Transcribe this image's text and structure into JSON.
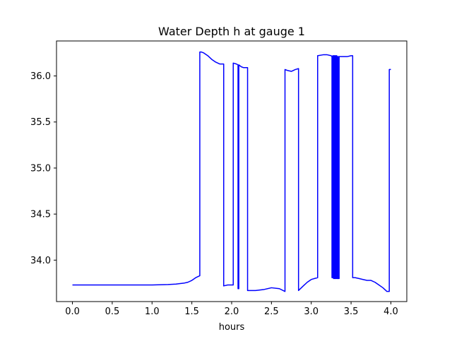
{
  "chart_data": {
    "type": "line",
    "title": "Water Depth h at gauge 1",
    "xlabel": "hours",
    "ylabel": "",
    "xlim": [
      -0.2,
      4.2
    ],
    "ylim": [
      33.55,
      36.38
    ],
    "xticks": [
      0.0,
      0.5,
      1.0,
      1.5,
      2.0,
      2.5,
      3.0,
      3.5,
      4.0
    ],
    "xtick_labels": [
      "0.0",
      "0.5",
      "1.0",
      "1.5",
      "2.0",
      "2.5",
      "3.0",
      "3.5",
      "4.0"
    ],
    "yticks": [
      34.0,
      34.5,
      35.0,
      35.5,
      36.0
    ],
    "ytick_labels": [
      "34.0",
      "34.5",
      "35.0",
      "35.5",
      "36.0"
    ],
    "grid": false,
    "legend": "none",
    "series": [
      {
        "color": "#0000ff",
        "x": [
          0.0,
          0.5,
          1.0,
          1.2,
          1.3,
          1.4,
          1.45,
          1.5,
          1.55,
          1.6,
          1.6,
          1.62,
          1.65,
          1.7,
          1.75,
          1.8,
          1.85,
          1.9,
          1.9,
          1.95,
          2.0,
          2.02,
          2.02,
          2.06,
          2.08,
          2.08,
          2.09,
          2.09,
          2.12,
          2.15,
          2.2,
          2.2,
          2.3,
          2.4,
          2.5,
          2.6,
          2.67,
          2.67,
          2.7,
          2.75,
          2.8,
          2.84,
          2.84,
          2.9,
          2.95,
          3.0,
          3.08,
          3.08,
          3.15,
          3.2,
          3.25,
          3.26,
          3.26,
          3.27,
          3.27,
          3.28,
          3.28,
          3.29,
          3.29,
          3.3,
          3.3,
          3.31,
          3.31,
          3.32,
          3.32,
          3.33,
          3.33,
          3.34,
          3.34,
          3.35,
          3.35,
          3.4,
          3.45,
          3.5,
          3.52,
          3.52,
          3.55,
          3.6,
          3.65,
          3.7,
          3.75,
          3.8,
          3.85,
          3.9,
          3.95,
          3.98,
          3.98,
          4.0
        ],
        "y": [
          33.73,
          33.73,
          33.73,
          33.735,
          33.74,
          33.75,
          33.76,
          33.78,
          33.81,
          33.83,
          36.26,
          36.26,
          36.25,
          36.22,
          36.18,
          36.15,
          36.13,
          36.13,
          33.72,
          33.73,
          33.73,
          33.73,
          36.14,
          36.13,
          36.12,
          33.69,
          33.69,
          36.12,
          36.1,
          36.09,
          36.09,
          33.67,
          33.67,
          33.68,
          33.7,
          33.69,
          33.66,
          36.07,
          36.06,
          36.05,
          36.07,
          36.08,
          33.67,
          33.72,
          33.76,
          33.79,
          33.81,
          36.22,
          36.23,
          36.23,
          36.22,
          36.21,
          33.81,
          33.81,
          36.22,
          36.22,
          33.8,
          33.8,
          36.22,
          36.22,
          33.8,
          33.8,
          36.22,
          36.22,
          33.8,
          33.8,
          36.21,
          36.21,
          33.8,
          33.8,
          36.21,
          36.21,
          36.21,
          36.22,
          36.22,
          33.81,
          33.81,
          33.8,
          33.79,
          33.78,
          33.78,
          33.76,
          33.73,
          33.7,
          33.66,
          33.66,
          36.07,
          36.07
        ]
      }
    ]
  }
}
